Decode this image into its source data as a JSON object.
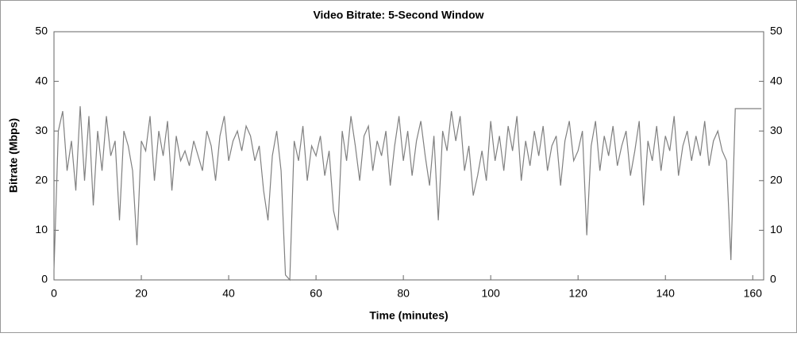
{
  "chart_data": {
    "type": "line",
    "title": "Video Bitrate: 5-Second Window",
    "x_label": "Time (minutes)",
    "y_label": "Bitrate (Mbps)",
    "x": [
      0,
      1,
      2,
      3,
      4,
      5,
      6,
      7,
      8,
      9,
      10,
      11,
      12,
      13,
      14,
      15,
      16,
      17,
      18,
      19,
      20,
      21,
      22,
      23,
      24,
      25,
      26,
      27,
      28,
      29,
      30,
      31,
      32,
      33,
      34,
      35,
      36,
      37,
      38,
      39,
      40,
      41,
      42,
      43,
      44,
      45,
      46,
      47,
      48,
      49,
      50,
      51,
      52,
      53,
      54,
      55,
      56,
      57,
      58,
      59,
      60,
      61,
      62,
      63,
      64,
      65,
      66,
      67,
      68,
      69,
      70,
      71,
      72,
      73,
      74,
      75,
      76,
      77,
      78,
      79,
      80,
      81,
      82,
      83,
      84,
      85,
      86,
      87,
      88,
      89,
      90,
      91,
      92,
      93,
      94,
      95,
      96,
      97,
      98,
      99,
      100,
      101,
      102,
      103,
      104,
      105,
      106,
      107,
      108,
      109,
      110,
      111,
      112,
      113,
      114,
      115,
      116,
      117,
      118,
      119,
      120,
      121,
      122,
      123,
      124,
      125,
      126,
      127,
      128,
      129,
      130,
      131,
      132,
      133,
      134,
      135,
      136,
      137,
      138,
      139,
      140,
      141,
      142,
      143,
      144,
      145,
      146,
      147,
      148,
      149,
      150,
      151,
      152,
      153,
      154,
      155,
      156,
      157,
      158,
      159,
      160,
      161,
      162
    ],
    "values": [
      2,
      30,
      34,
      22,
      28,
      18,
      35,
      20,
      33,
      15,
      30,
      22,
      33,
      25,
      28,
      12,
      30,
      27,
      22,
      7,
      28,
      26,
      33,
      20,
      30,
      25,
      32,
      18,
      29,
      24,
      26,
      23,
      28,
      25,
      22,
      30,
      27,
      20,
      29,
      33,
      24,
      28,
      30,
      26,
      31,
      29,
      24,
      27,
      18,
      12,
      25,
      30,
      22,
      1,
      0,
      28,
      24,
      31,
      20,
      27,
      25,
      29,
      21,
      26,
      14,
      10,
      30,
      24,
      33,
      27,
      20,
      29,
      31,
      22,
      28,
      25,
      30,
      19,
      27,
      33,
      24,
      30,
      21,
      28,
      32,
      25,
      19,
      29,
      12,
      30,
      26,
      34,
      28,
      33,
      22,
      27,
      17,
      21,
      26,
      20,
      32,
      24,
      29,
      22,
      31,
      26,
      33,
      20,
      28,
      23,
      30,
      25,
      31,
      22,
      27,
      29,
      19,
      28,
      32,
      24,
      26,
      30,
      9,
      27,
      32,
      22,
      29,
      25,
      31,
      23,
      27,
      30,
      21,
      26,
      32,
      15,
      28,
      24,
      31,
      22,
      29,
      26,
      33,
      21,
      27,
      30,
      24,
      29,
      25,
      32,
      23,
      28,
      30,
      26,
      24,
      4,
      34.5,
      34.5,
      34.5,
      34.5,
      34.5,
      34.5,
      34.5
    ],
    "color": "#808080",
    "xlim": [
      0,
      162.5
    ],
    "xticks": [
      0,
      20,
      40,
      60,
      80,
      100,
      120,
      140,
      160
    ],
    "ylim": [
      0,
      50
    ],
    "yticks": [
      0,
      10,
      20,
      30,
      40,
      50
    ],
    "y2lim": [
      0,
      50
    ],
    "y2ticks": [
      0,
      10,
      20,
      30,
      40,
      50
    ]
  }
}
